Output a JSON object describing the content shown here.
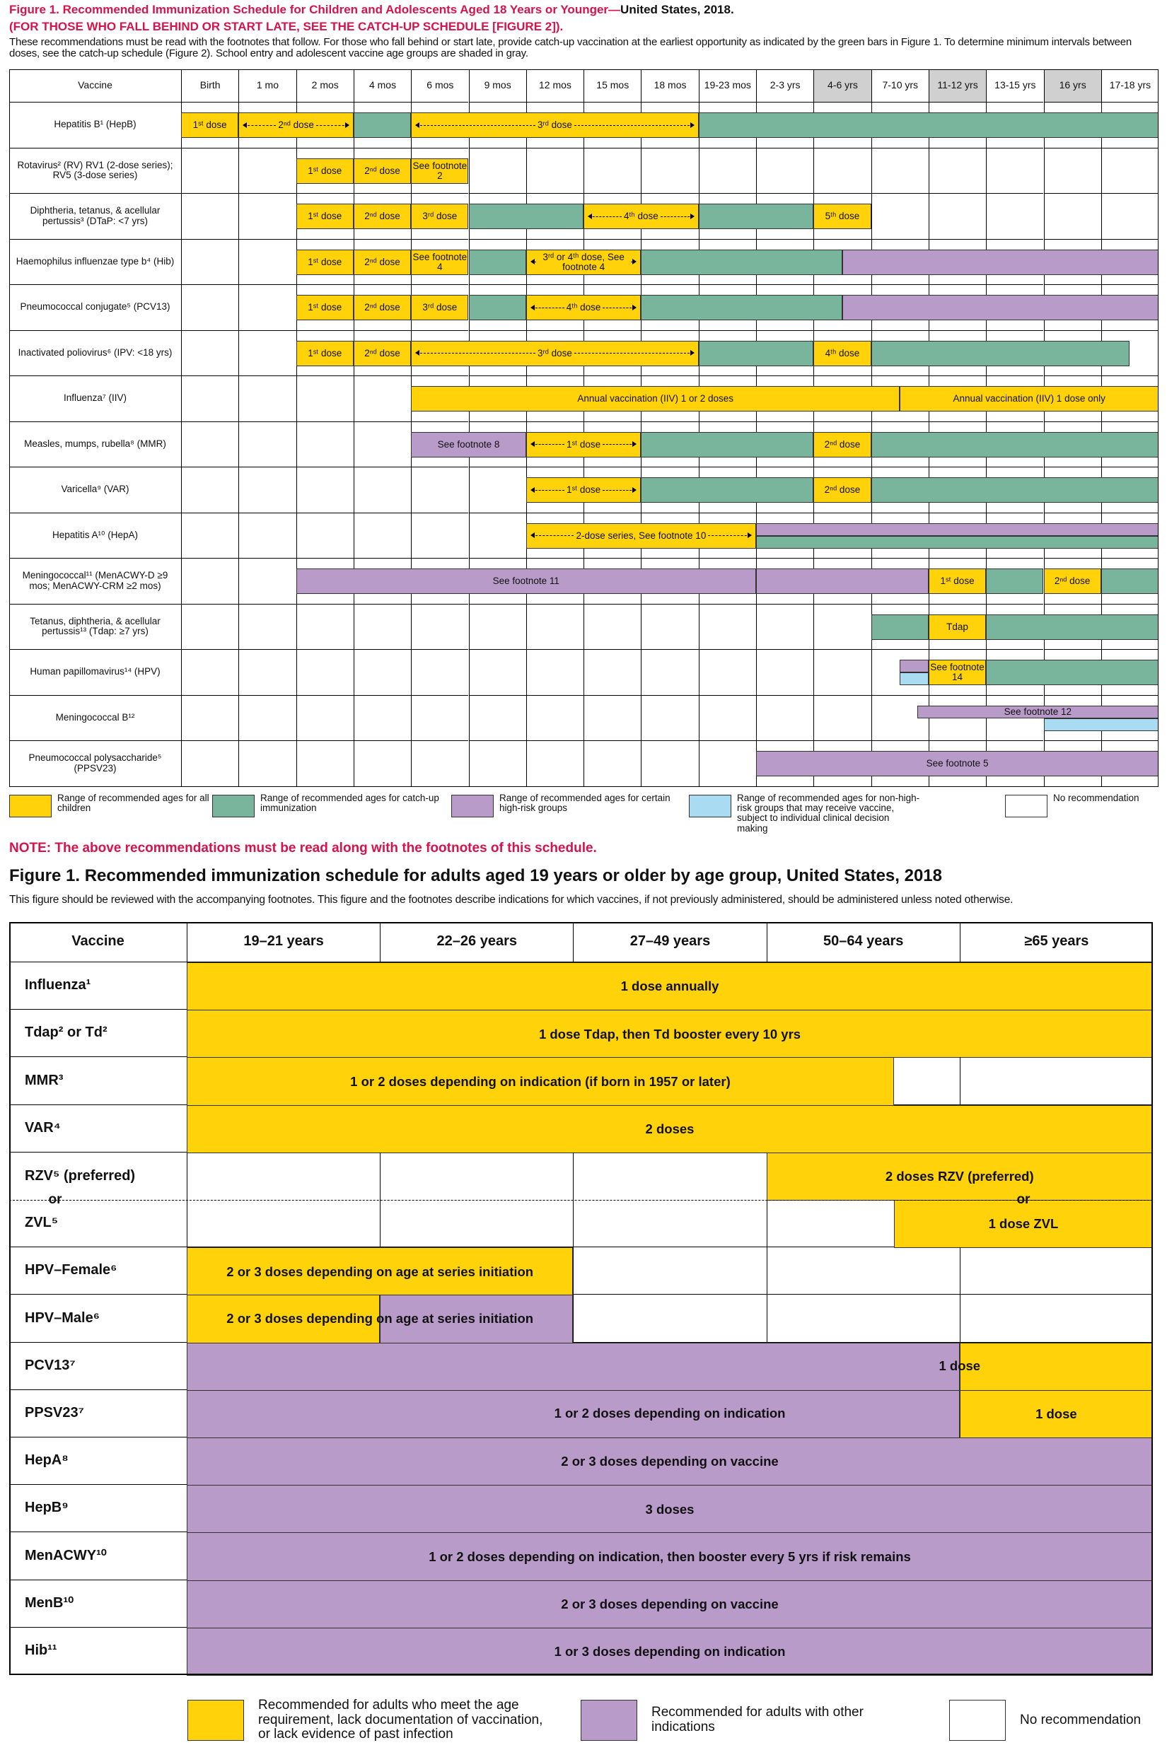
{
  "header": {
    "title": "Figure 1. Recommended Immunization Schedule for Children and Adolescents Aged 18 Years or Younger—",
    "title_suffix": "United States, 2018.",
    "catch_up_note": "(FOR THOSE WHO FALL BEHIND OR START LATE, SEE THE CATCH-UP SCHEDULE [FIGURE 2]).",
    "intro": "These recommendations must be read with the footnotes that follow. For those who fall behind or start late, provide catch-up vaccination at the earliest opportunity as indicated by the green bars in Figure 1. To determine minimum intervals between doses, see the catch-up schedule (Figure 2). School entry and adolescent vaccine age groups are shaded in gray."
  },
  "colors": {
    "routine": "#ffd20a",
    "catch_up": "#79b49d",
    "high_risk": "#b99bca",
    "non_high_risk": "#a9dbf2",
    "none": "#ffffff",
    "shaded": "#d0d0d0"
  },
  "child_table": {
    "vaccine_header": "Vaccine",
    "columns": [
      {
        "label": "Birth"
      },
      {
        "label": "1 mo"
      },
      {
        "label": "2 mos"
      },
      {
        "label": "4 mos"
      },
      {
        "label": "6 mos"
      },
      {
        "label": "9 mos"
      },
      {
        "label": "12 mos"
      },
      {
        "label": "15 mos"
      },
      {
        "label": "18 mos"
      },
      {
        "label": "19-23 mos"
      },
      {
        "label": "2-3 yrs"
      },
      {
        "label": "4-6 yrs",
        "shaded": true
      },
      {
        "label": "7-10 yrs"
      },
      {
        "label": "11-12 yrs",
        "shaded": true
      },
      {
        "label": "13-15 yrs"
      },
      {
        "label": "16 yrs",
        "shaded": true
      },
      {
        "label": "17-18 yrs"
      }
    ],
    "rows": [
      {
        "label": "Hepatitis B¹ (HepB)",
        "bars": [
          {
            "from": 0,
            "to": 1,
            "kind": "routine",
            "label": "1ˢᵗ dose"
          },
          {
            "from": 1,
            "to": 3,
            "kind": "routine",
            "label": "2ⁿᵈ dose",
            "arrow": true
          },
          {
            "from": 3,
            "to": 4,
            "kind": "catch_up"
          },
          {
            "from": 4,
            "to": 9,
            "kind": "routine",
            "label": "3ʳᵈ dose",
            "arrow": true
          },
          {
            "from": 9,
            "to": 17,
            "kind": "catch_up"
          }
        ]
      },
      {
        "label": "Rotavirus² (RV) RV1 (2-dose series); RV5 (3-dose series)",
        "bars": [
          {
            "from": 2,
            "to": 3,
            "kind": "routine",
            "label": "1ˢᵗ dose"
          },
          {
            "from": 3,
            "to": 4,
            "kind": "routine",
            "label": "2ⁿᵈ dose"
          },
          {
            "from": 4,
            "to": 5,
            "kind": "routine",
            "label": "See footnote 2"
          }
        ]
      },
      {
        "label": "Diphtheria, tetanus, & acellular pertussis³ (DTaP: <7 yrs)",
        "bars": [
          {
            "from": 2,
            "to": 3,
            "kind": "routine",
            "label": "1ˢᵗ dose"
          },
          {
            "from": 3,
            "to": 4,
            "kind": "routine",
            "label": "2ⁿᵈ dose"
          },
          {
            "from": 4,
            "to": 5,
            "kind": "routine",
            "label": "3ʳᵈ dose"
          },
          {
            "from": 5,
            "to": 7,
            "kind": "catch_up"
          },
          {
            "from": 7,
            "to": 9,
            "kind": "routine",
            "label": "4ᵗʰ dose",
            "arrow": true
          },
          {
            "from": 9,
            "to": 11,
            "kind": "catch_up"
          },
          {
            "from": 11,
            "to": 12,
            "kind": "routine",
            "label": "5ᵗʰ dose"
          }
        ]
      },
      {
        "label": "Haemophilus influenzae type b⁴ (Hib)",
        "bars": [
          {
            "from": 2,
            "to": 3,
            "kind": "routine",
            "label": "1ˢᵗ dose"
          },
          {
            "from": 3,
            "to": 4,
            "kind": "routine",
            "label": "2ⁿᵈ dose"
          },
          {
            "from": 4,
            "to": 5,
            "kind": "routine",
            "label": "See footnote 4"
          },
          {
            "from": 5,
            "to": 6,
            "kind": "catch_up"
          },
          {
            "from": 6,
            "to": 8,
            "kind": "routine",
            "label": "3ʳᵈ or 4ᵗʰ dose, See footnote 4",
            "arrow": true
          },
          {
            "from": 8,
            "to": 11.5,
            "kind": "catch_up"
          },
          {
            "from": 11.5,
            "to": 17,
            "kind": "high_risk"
          }
        ]
      },
      {
        "label": "Pneumococcal conjugate⁵ (PCV13)",
        "bars": [
          {
            "from": 2,
            "to": 3,
            "kind": "routine",
            "label": "1ˢᵗ dose"
          },
          {
            "from": 3,
            "to": 4,
            "kind": "routine",
            "label": "2ⁿᵈ dose"
          },
          {
            "from": 4,
            "to": 5,
            "kind": "routine",
            "label": "3ʳᵈ dose"
          },
          {
            "from": 5,
            "to": 6,
            "kind": "catch_up"
          },
          {
            "from": 6,
            "to": 8,
            "kind": "routine",
            "label": "4ᵗʰ dose",
            "arrow": true
          },
          {
            "from": 8,
            "to": 11.5,
            "kind": "catch_up"
          },
          {
            "from": 11.5,
            "to": 17,
            "kind": "high_risk"
          }
        ]
      },
      {
        "label": "Inactivated poliovirus⁶ (IPV: <18 yrs)",
        "bars": [
          {
            "from": 2,
            "to": 3,
            "kind": "routine",
            "label": "1ˢᵗ dose"
          },
          {
            "from": 3,
            "to": 4,
            "kind": "routine",
            "label": "2ⁿᵈ dose"
          },
          {
            "from": 4,
            "to": 9,
            "kind": "routine",
            "label": "3ʳᵈ dose",
            "arrow": true
          },
          {
            "from": 9,
            "to": 11,
            "kind": "catch_up"
          },
          {
            "from": 11,
            "to": 12,
            "kind": "routine",
            "label": "4ᵗʰ dose"
          },
          {
            "from": 12,
            "to": 16.5,
            "kind": "catch_up"
          }
        ]
      },
      {
        "label": "Influenza⁷ (IIV)",
        "bars": [
          {
            "from": 4,
            "to": 12.5,
            "kind": "routine",
            "label": "Annual vaccination (IIV) 1 or 2 doses"
          },
          {
            "from": 12.5,
            "to": 17,
            "kind": "routine",
            "label": "Annual vaccination (IIV) 1 dose only"
          }
        ]
      },
      {
        "label": "Measles, mumps, rubella⁸ (MMR)",
        "bars": [
          {
            "from": 4,
            "to": 6,
            "kind": "high_risk",
            "label": "See footnote 8"
          },
          {
            "from": 6,
            "to": 8,
            "kind": "routine",
            "label": "1ˢᵗ dose",
            "arrow": true
          },
          {
            "from": 8,
            "to": 11,
            "kind": "catch_up"
          },
          {
            "from": 11,
            "to": 12,
            "kind": "routine",
            "label": "2ⁿᵈ dose"
          },
          {
            "from": 12,
            "to": 17,
            "kind": "catch_up"
          }
        ]
      },
      {
        "label": "Varicella⁹ (VAR)",
        "bars": [
          {
            "from": 6,
            "to": 8,
            "kind": "routine",
            "label": "1ˢᵗ dose",
            "arrow": true
          },
          {
            "from": 8,
            "to": 11,
            "kind": "catch_up"
          },
          {
            "from": 11,
            "to": 12,
            "kind": "routine",
            "label": "2ⁿᵈ dose"
          },
          {
            "from": 12,
            "to": 17,
            "kind": "catch_up"
          }
        ]
      },
      {
        "label": "Hepatitis A¹⁰ (HepA)",
        "bars": [
          {
            "from": 6,
            "to": 10,
            "kind": "routine",
            "label": "2-dose series, See footnote 10",
            "arrow": true
          },
          {
            "from": 10,
            "to": 17,
            "kind": "high_risk",
            "half": "top"
          },
          {
            "from": 10,
            "to": 17,
            "kind": "catch_up",
            "half": "bottom"
          }
        ]
      },
      {
        "label": "Meningococcal¹¹ (MenACWY-D ≥9 mos; MenACWY-CRM ≥2 mos)",
        "bars": [
          {
            "from": 2,
            "to": 10,
            "kind": "high_risk",
            "label": "See footnote 11"
          },
          {
            "from": 10,
            "to": 13,
            "kind": "high_risk"
          },
          {
            "from": 13,
            "to": 14,
            "kind": "routine",
            "label": "1ˢᵗ dose"
          },
          {
            "from": 14,
            "to": 15,
            "kind": "catch_up"
          },
          {
            "from": 15,
            "to": 16,
            "kind": "routine",
            "label": "2ⁿᵈ dose"
          },
          {
            "from": 16,
            "to": 17,
            "kind": "catch_up"
          }
        ]
      },
      {
        "label": "Tetanus, diphtheria, & acellular pertussis¹³ (Tdap: ≥7 yrs)",
        "bars": [
          {
            "from": 12,
            "to": 13,
            "kind": "catch_up"
          },
          {
            "from": 13,
            "to": 14,
            "kind": "routine",
            "label": "Tdap"
          },
          {
            "from": 14,
            "to": 17,
            "kind": "catch_up"
          }
        ]
      },
      {
        "label": "Human papillomavirus¹⁴ (HPV)",
        "bars": [
          {
            "from": 12.5,
            "to": 13,
            "kind": "high_risk",
            "half": "top"
          },
          {
            "from": 12.5,
            "to": 13,
            "kind": "non_high_risk",
            "half": "bottom"
          },
          {
            "from": 13,
            "to": 14,
            "kind": "routine",
            "label": "See footnote 14"
          },
          {
            "from": 14,
            "to": 17,
            "kind": "catch_up"
          }
        ]
      },
      {
        "label": "Meningococcal B¹²",
        "bars": [
          {
            "from": 12.8,
            "to": 17,
            "kind": "high_risk",
            "half": "top",
            "label": "See footnote 12"
          },
          {
            "from": 15,
            "to": 17,
            "kind": "non_high_risk",
            "half": "bottom"
          }
        ]
      },
      {
        "label": "Pneumococcal polysaccharide⁵ (PPSV23)",
        "bars": [
          {
            "from": 10,
            "to": 17,
            "kind": "high_risk",
            "label": "See footnote 5"
          }
        ]
      }
    ]
  },
  "child_legend": [
    {
      "kind": "routine",
      "label": "Range of recommended ages for all children"
    },
    {
      "kind": "catch_up",
      "label": "Range of recommended ages for catch-up immunization"
    },
    {
      "kind": "high_risk",
      "label": "Range of recommended ages for certain high-risk groups"
    },
    {
      "kind": "non_high_risk",
      "label": "Range of recommended ages for non-high-risk groups that may receive vaccine, subject to individual clinical decision making"
    },
    {
      "kind": "none",
      "label": "No recommendation"
    }
  ],
  "note": "NOTE: The above recommendations must be read along with the footnotes of this schedule.",
  "adult_header": {
    "title": "Figure 1. Recommended immunization schedule for adults aged 19 years or older by age group, United States, 2018",
    "subtitle": "This figure should be reviewed with the accompanying footnotes. This figure and the footnotes describe indications for which vaccines, if not previously administered, should be administered unless noted otherwise."
  },
  "adult_table": {
    "vaccine_header": "Vaccine",
    "columns": [
      "19–21 years",
      "22–26 years",
      "27–49 years",
      "50–64 years",
      "≥65 years"
    ],
    "rows": [
      {
        "label": "Influenza¹",
        "bars": [
          {
            "from": 0,
            "to": 5,
            "kind": "routine",
            "label": "1 dose annually"
          }
        ]
      },
      {
        "label": "Tdap² or Td²",
        "bars": [
          {
            "from": 0,
            "to": 5,
            "kind": "routine",
            "label": "1 dose Tdap, then Td booster every 10 yrs"
          }
        ]
      },
      {
        "label": "MMR³",
        "bars": [
          {
            "from": 0,
            "to": 3.66,
            "kind": "routine",
            "label": "1 or 2 doses depending on indication (if born in 1957 or later)"
          }
        ]
      },
      {
        "label": "VAR⁴",
        "bars": [
          {
            "from": 0,
            "to": 5,
            "kind": "routine",
            "label": "2 doses"
          }
        ]
      },
      {
        "label": "RZV⁵ (preferred)",
        "bars": [
          {
            "from": 3,
            "to": 5,
            "kind": "routine",
            "label": "2 doses RZV (preferred)"
          }
        ]
      },
      {
        "label": "ZVL⁵",
        "or": "or",
        "bars": [
          {
            "from": 3.66,
            "to": 5,
            "kind": "routine",
            "label": "1 dose ZVL"
          }
        ]
      },
      {
        "label": "HPV–Female⁶",
        "bars": [
          {
            "from": 0,
            "to": 2,
            "kind": "routine",
            "label": "2 or 3 doses depending on age at series initiation"
          }
        ]
      },
      {
        "label": "HPV–Male⁶",
        "bars": [
          {
            "from": 0,
            "to": 1,
            "kind": "routine"
          },
          {
            "from": 1,
            "to": 2,
            "kind": "high_risk"
          }
        ],
        "labels": [
          {
            "text": "2 or 3 doses depending on age at series initiation",
            "from": 0,
            "to": 2
          }
        ]
      },
      {
        "label": "PCV13⁷",
        "bars": [
          {
            "from": 0,
            "to": 4,
            "kind": "high_risk"
          },
          {
            "from": 4,
            "to": 5,
            "kind": "routine"
          }
        ],
        "labels": [
          {
            "text": "1 dose",
            "from": 3,
            "to": 5
          }
        ]
      },
      {
        "label": "PPSV23⁷",
        "bars": [
          {
            "from": 0,
            "to": 4,
            "kind": "high_risk"
          },
          {
            "from": 4,
            "to": 5,
            "kind": "routine",
            "label": "1 dose"
          }
        ],
        "labels": [
          {
            "text": "1 or 2 doses depending on indication",
            "from": 0,
            "to": 5
          }
        ]
      },
      {
        "label": "HepA⁸",
        "bars": [
          {
            "from": 0,
            "to": 5,
            "kind": "high_risk",
            "label": "2 or 3 doses depending on vaccine"
          }
        ]
      },
      {
        "label": "HepB⁹",
        "bars": [
          {
            "from": 0,
            "to": 5,
            "kind": "high_risk",
            "label": "3 doses"
          }
        ]
      },
      {
        "label": "MenACWY¹⁰",
        "bars": [
          {
            "from": 0,
            "to": 5,
            "kind": "high_risk",
            "label": "1 or 2 doses depending on indication, then booster every 5 yrs if risk remains"
          }
        ]
      },
      {
        "label": "MenB¹⁰",
        "bars": [
          {
            "from": 0,
            "to": 5,
            "kind": "high_risk",
            "label": "2 or 3 doses depending on vaccine"
          }
        ]
      },
      {
        "label": "Hib¹¹",
        "bars": [
          {
            "from": 0,
            "to": 5,
            "kind": "high_risk",
            "label": "1 or 3 doses depending on indication"
          }
        ]
      }
    ]
  },
  "adult_legend": [
    {
      "kind": "routine",
      "label": "Recommended for adults who meet the age requirement, lack documentation of vaccination, or lack evidence of past infection"
    },
    {
      "kind": "high_risk",
      "label": "Recommended for adults with other indications"
    },
    {
      "kind": "none",
      "label": "No recommendation"
    }
  ]
}
